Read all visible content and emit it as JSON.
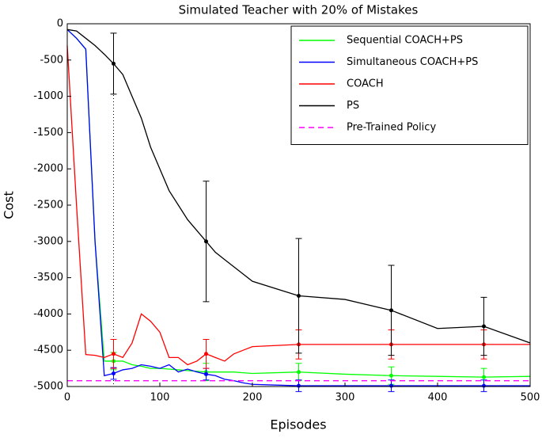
{
  "chart_data": {
    "type": "line",
    "title": "Simulated Teacher with 20% of Mistakes",
    "x_label": "Episodes",
    "y_label": "Cost",
    "x": [
      0,
      10,
      20,
      30,
      40,
      50,
      60,
      70,
      80,
      90,
      100,
      110,
      120,
      130,
      140,
      150,
      160,
      170,
      180,
      190,
      200,
      250,
      300,
      350,
      400,
      450,
      500
    ],
    "xlim": [
      0,
      500
    ],
    "xticks": [
      0,
      100,
      200,
      300,
      400,
      500
    ],
    "ylim": [
      -5000,
      0
    ],
    "yticks": [
      0,
      -500,
      -1000,
      -1500,
      -2000,
      -2500,
      -3000,
      -3500,
      -4000,
      -4500,
      -5000
    ],
    "legend": "upper right",
    "series": [
      {
        "name": "Sequential COACH+PS",
        "color": "#00ff00",
        "values": [
          -80,
          -200,
          -350,
          -3000,
          -4650,
          -4650,
          -4650,
          -4700,
          -4720,
          -4750,
          -4750,
          -4760,
          -4770,
          -4780,
          -4790,
          -4800,
          -4800,
          -4800,
          -4800,
          -4810,
          -4820,
          -4800,
          -4830,
          -4850,
          -4860,
          -4870,
          -4860
        ],
        "errors": [
          null,
          null,
          null,
          null,
          null,
          120,
          null,
          null,
          null,
          null,
          null,
          null,
          null,
          null,
          null,
          120,
          null,
          null,
          null,
          null,
          null,
          120,
          null,
          120,
          null,
          120,
          null
        ]
      },
      {
        "name": "Simultaneous COACH+PS",
        "color": "#0000ff",
        "values": [
          -80,
          -200,
          -350,
          -3000,
          -4850,
          -4820,
          -4770,
          -4750,
          -4700,
          -4720,
          -4750,
          -4700,
          -4800,
          -4760,
          -4800,
          -4830,
          -4850,
          -4900,
          -4920,
          -4950,
          -4970,
          -4990,
          -4990,
          -4990,
          -4990,
          -4990,
          -4990
        ],
        "errors": [
          null,
          null,
          null,
          null,
          null,
          80,
          null,
          null,
          null,
          null,
          null,
          null,
          null,
          null,
          null,
          80,
          null,
          null,
          null,
          null,
          null,
          80,
          null,
          80,
          null,
          80,
          null
        ]
      },
      {
        "name": "COACH",
        "color": "#ff0000",
        "values": [
          -300,
          -2500,
          -4560,
          -4570,
          -4600,
          -4550,
          -4600,
          -4400,
          -4000,
          -4100,
          -4250,
          -4600,
          -4600,
          -4700,
          -4650,
          -4550,
          -4600,
          -4650,
          -4550,
          -4500,
          -4450,
          -4420,
          -4420,
          -4420,
          -4420,
          -4420,
          -4420
        ],
        "errors": [
          null,
          null,
          null,
          null,
          null,
          200,
          null,
          null,
          null,
          null,
          null,
          null,
          null,
          null,
          null,
          200,
          null,
          null,
          null,
          null,
          null,
          200,
          null,
          200,
          null,
          200,
          null
        ]
      },
      {
        "name": "PS",
        "color": "#000000",
        "values": [
          -80,
          -100,
          -200,
          -300,
          -420,
          -550,
          -700,
          -1000,
          -1300,
          -1700,
          -2000,
          -2300,
          -2500,
          -2700,
          -2850,
          -3000,
          -3150,
          -3250,
          -3350,
          -3450,
          -3550,
          -3750,
          -3800,
          -3950,
          -4200,
          -4170,
          -4400
        ],
        "errors": [
          null,
          null,
          null,
          null,
          null,
          420,
          null,
          null,
          null,
          null,
          null,
          null,
          null,
          null,
          null,
          830,
          null,
          null,
          null,
          null,
          null,
          790,
          null,
          620,
          null,
          400,
          null
        ]
      },
      {
        "name": "Pre-Trained Policy",
        "color": "#ff00ff",
        "dashed": true,
        "values": [
          -4920,
          -4920,
          -4920,
          -4920,
          -4920,
          -4920,
          -4920,
          -4920,
          -4920,
          -4920,
          -4920,
          -4920,
          -4920,
          -4920,
          -4920,
          -4920,
          -4920,
          -4920,
          -4920,
          -4920,
          -4920,
          -4920,
          -4920,
          -4920,
          -4920,
          -4920,
          -4920
        ]
      }
    ]
  }
}
